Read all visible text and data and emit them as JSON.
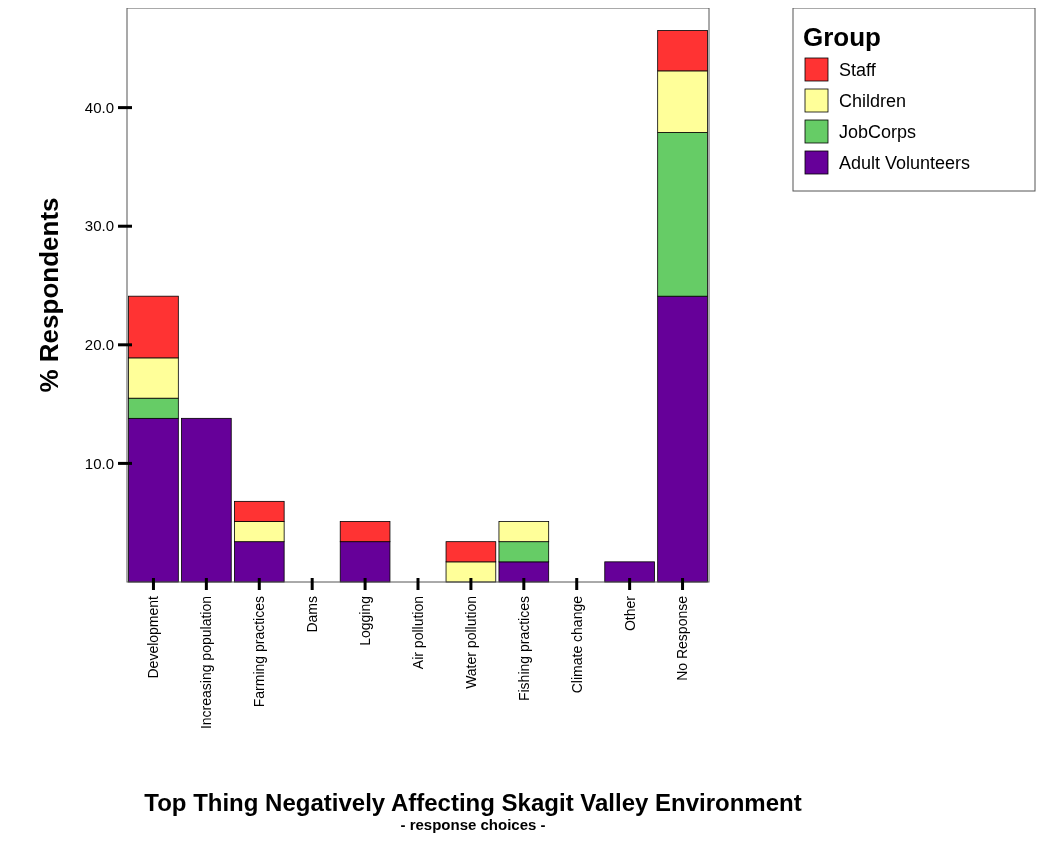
{
  "chart_data": {
    "type": "bar",
    "stacked": true,
    "xlabel": "Top Thing Negatively Affecting Skagit Valley Environment",
    "subtitle": "- response choices -",
    "ylabel": "% Respondents",
    "legend_title": "Group",
    "legend": "top right",
    "categories": [
      "Development",
      "Increasing population",
      "Farming practices",
      "Dams",
      "Logging",
      "Air pollution",
      "Water pollution",
      "Fishing practices",
      "Climate change",
      "Other",
      "No Response"
    ],
    "series": [
      {
        "name": "Adult Volunteers",
        "color": "#660099",
        "values": [
          13.8,
          13.8,
          3.4,
          0,
          3.4,
          0,
          0,
          1.7,
          0,
          1.7,
          24.1
        ]
      },
      {
        "name": "JobCorps",
        "color": "#66cc66",
        "values": [
          1.7,
          0,
          0,
          0,
          0,
          0,
          0,
          1.7,
          0,
          0,
          13.8
        ]
      },
      {
        "name": "Children",
        "color": "#ffff99",
        "values": [
          3.4,
          0,
          1.7,
          0,
          0,
          0,
          1.7,
          1.7,
          0,
          0,
          5.2
        ]
      },
      {
        "name": "Staff",
        "color": "#ff3333",
        "values": [
          5.2,
          0,
          1.7,
          0,
          1.7,
          0,
          1.7,
          0,
          0,
          0,
          3.4
        ]
      }
    ],
    "ylim": [
      0,
      48.4
    ],
    "yticks": [
      {
        "value": 10,
        "label": "10.0"
      },
      {
        "value": 20,
        "label": "20.0"
      },
      {
        "value": 30,
        "label": "30.0"
      },
      {
        "value": 40,
        "label": "40.0"
      }
    ],
    "grid": false
  }
}
